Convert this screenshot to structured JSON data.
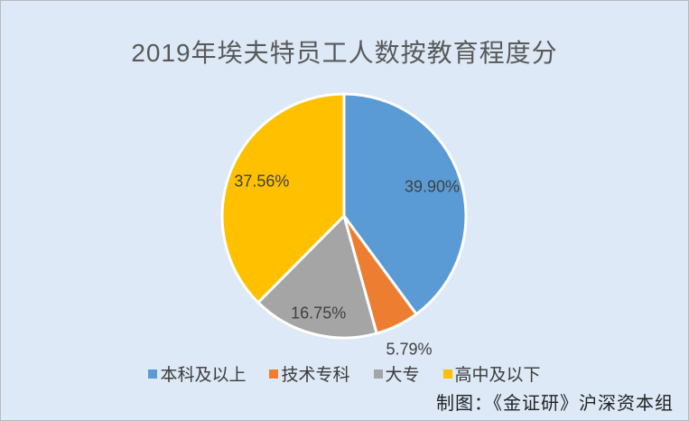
{
  "title": "2019年埃夫特员工人数按教育程度分",
  "panel": {
    "background": "#dde9f6",
    "border_color": "#b9b9b9"
  },
  "chart_data": {
    "type": "pie",
    "title": "2019年埃夫特员工人数按教育程度分",
    "direction": "clockwise",
    "start_angle_deg": 0,
    "legend_position": "bottom",
    "slices": [
      {
        "name": "本科及以上",
        "value": 39.9,
        "label": "39.90%",
        "color": "#5b9bd5",
        "label_inside": true
      },
      {
        "name": "技术专科",
        "value": 5.79,
        "label": "5.79%",
        "color": "#ed7d31",
        "label_inside": false
      },
      {
        "name": "大专",
        "value": 16.75,
        "label": "16.75%",
        "color": "#a5a5a5",
        "label_inside": true
      },
      {
        "name": "高中及以下",
        "value": 37.56,
        "label": "37.56%",
        "color": "#ffc000",
        "label_inside": true
      }
    ]
  },
  "legend": {
    "items": [
      {
        "label": "本科及以上",
        "color": "#5b9bd5"
      },
      {
        "label": "技术专科",
        "color": "#ed7d31"
      },
      {
        "label": "大专",
        "color": "#a5a5a5"
      },
      {
        "label": "高中及以下",
        "color": "#ffc000"
      }
    ]
  },
  "footer": {
    "credit": "制图：《金证研》沪深资本组"
  }
}
